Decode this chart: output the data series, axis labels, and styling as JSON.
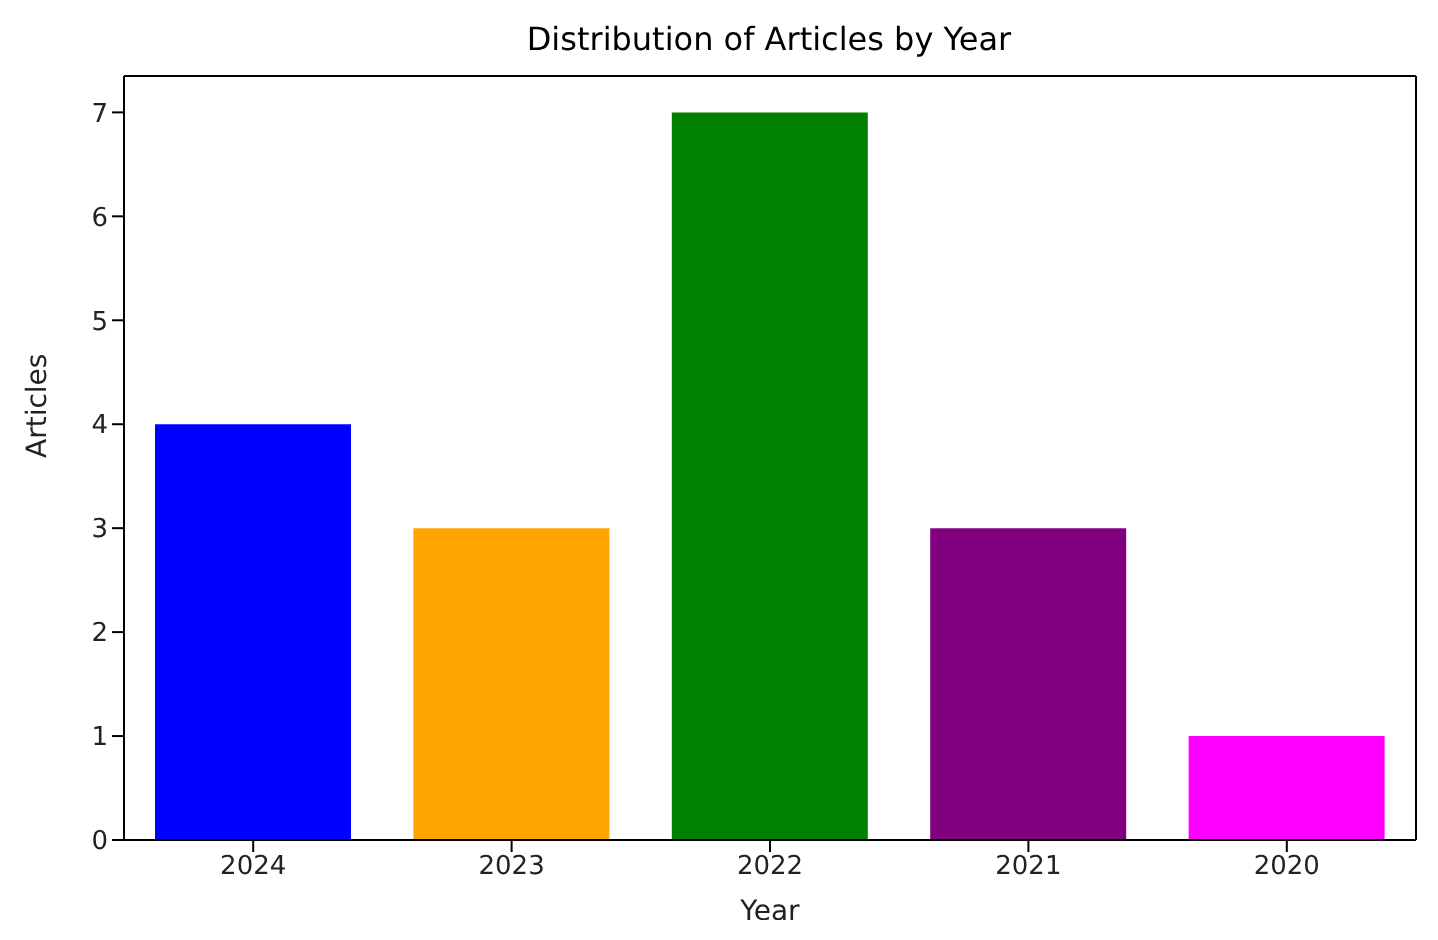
{
  "chart_data": {
    "type": "bar",
    "title": "Distribution of Articles by Year",
    "xlabel": "Year",
    "ylabel": "Articles",
    "categories": [
      "2024",
      "2023",
      "2022",
      "2021",
      "2020"
    ],
    "values": [
      4,
      3,
      7,
      3,
      1
    ],
    "colors": [
      "#0000ff",
      "#ffa500",
      "#008000",
      "#800080",
      "#ff00ff"
    ],
    "ylim": [
      0,
      7.35
    ],
    "yticks": [
      0,
      1,
      2,
      3,
      4,
      5,
      6,
      7
    ],
    "grid": false,
    "legend": false
  }
}
